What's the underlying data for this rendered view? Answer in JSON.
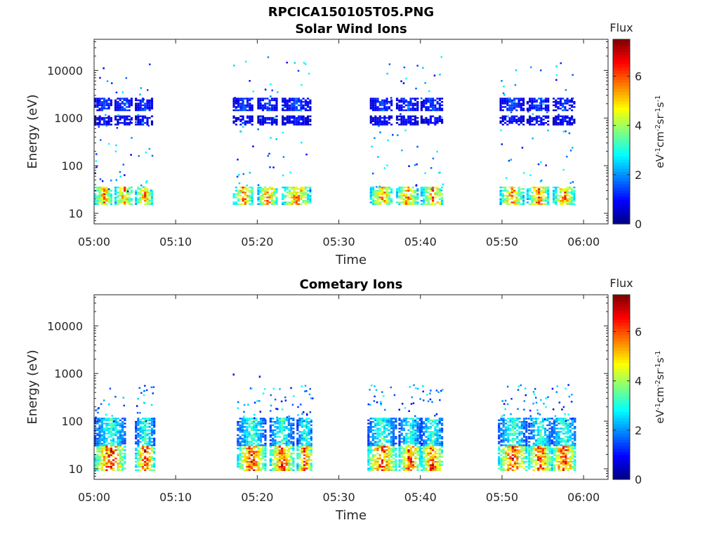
{
  "figure": {
    "title": "RPCICA150105T05.PNG"
  },
  "chart_data": [
    {
      "type": "heatmap",
      "title": "Solar Wind Ions",
      "xlabel": "Time",
      "ylabel": "Energy (eV)",
      "x_ticks": [
        "05:00",
        "05:10",
        "05:20",
        "05:30",
        "05:40",
        "05:50",
        "06:00"
      ],
      "y_ticks": [
        "10",
        "100",
        "1000",
        "10000"
      ],
      "y_scale": "log",
      "xlim": [
        "05:00",
        "06:03"
      ],
      "ylim": [
        6,
        45000
      ],
      "colorbar": {
        "label": "Flux",
        "unit": "eV-1cm-2sr-1s-1",
        "ticks": [
          0,
          2,
          4,
          6
        ],
        "range": [
          0,
          7.5
        ],
        "colormap": "jet"
      },
      "sweeps": [
        {
          "start_min": 0.0,
          "end_min": 2.2
        },
        {
          "start_min": 2.5,
          "end_min": 4.6
        },
        {
          "start_min": 5.0,
          "end_min": 7.1
        },
        {
          "start_min": 17.0,
          "end_min": 19.5
        },
        {
          "start_min": 20.0,
          "end_min": 22.4
        },
        {
          "start_min": 23.0,
          "end_min": 26.5
        },
        {
          "start_min": 33.8,
          "end_min": 36.6
        },
        {
          "start_min": 37.0,
          "end_min": 39.6
        },
        {
          "start_min": 40.0,
          "end_min": 42.8
        },
        {
          "start_min": 49.7,
          "end_min": 52.6
        },
        {
          "start_min": 53.0,
          "end_min": 55.7
        },
        {
          "start_min": 56.2,
          "end_min": 58.8
        }
      ],
      "bands": [
        {
          "e_min": 15,
          "e_max": 35,
          "flux": 6.2
        },
        {
          "e_min": 1400,
          "e_max": 2600,
          "flux": 1.6
        },
        {
          "e_min": 700,
          "e_max": 1100,
          "flux": 1.2
        }
      ],
      "scatter_energy_range": [
        30,
        20000
      ]
    },
    {
      "type": "heatmap",
      "title": "Cometary Ions",
      "xlabel": "Time",
      "ylabel": "Energy (eV)",
      "x_ticks": [
        "05:00",
        "05:10",
        "05:20",
        "05:30",
        "05:40",
        "05:50",
        "06:00"
      ],
      "y_ticks": [
        "10",
        "100",
        "1000",
        "10000"
      ],
      "y_scale": "log",
      "xlim": [
        "05:00",
        "06:03"
      ],
      "ylim": [
        6,
        45000
      ],
      "colorbar": {
        "label": "Flux",
        "unit": "eV-1cm-2sr-1s-1",
        "ticks": [
          0,
          2,
          4,
          6
        ],
        "range": [
          0,
          7.5
        ],
        "colormap": "jet"
      },
      "sweeps": [
        {
          "start_min": 0.0,
          "end_min": 3.8
        },
        {
          "start_min": 5.0,
          "end_min": 7.3
        },
        {
          "start_min": 17.5,
          "end_min": 20.9
        },
        {
          "start_min": 21.5,
          "end_min": 24.4
        },
        {
          "start_min": 24.8,
          "end_min": 26.7
        },
        {
          "start_min": 33.5,
          "end_min": 36.9
        },
        {
          "start_min": 37.3,
          "end_min": 39.9
        },
        {
          "start_min": 40.0,
          "end_min": 42.7
        },
        {
          "start_min": 49.5,
          "end_min": 52.9
        },
        {
          "start_min": 53.2,
          "end_min": 55.9
        },
        {
          "start_min": 56.0,
          "end_min": 59.0
        }
      ],
      "bands": [
        {
          "e_min": 9,
          "e_max": 30,
          "flux": 7.0
        },
        {
          "e_min": 30,
          "e_max": 110,
          "flux": 3.6
        }
      ],
      "scatter_energy_range": [
        100,
        600
      ],
      "isolated_points": [
        {
          "t_min": 17.0,
          "energy": 1000
        },
        {
          "t_min": 20.2,
          "energy": 900
        }
      ]
    }
  ]
}
